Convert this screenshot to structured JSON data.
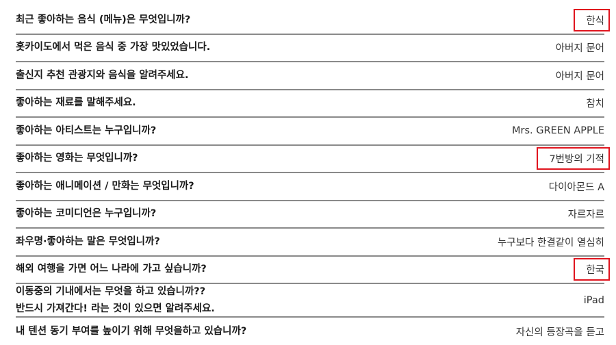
{
  "accent_highlight": "#e0141e",
  "rows": [
    {
      "question": "최근 좋아하는 음식 (메뉴)은 무엇입니까?",
      "answer": "한식",
      "highlighted": true
    },
    {
      "question": "홋카이도에서 먹은 음식 중 가장 맛있었습니다.",
      "answer": "아버지 문어",
      "highlighted": false
    },
    {
      "question": "출신지 추천 관광지와 음식을 알려주세요.",
      "answer": "아버지 문어",
      "highlighted": false
    },
    {
      "question": "좋아하는 재료를 말해주세요.",
      "answer": "참치",
      "highlighted": false
    },
    {
      "question": "좋아하는 아티스트는 누구입니까?",
      "answer": "Mrs. GREEN APPLE",
      "highlighted": false
    },
    {
      "question": "좋아하는 영화는 무엇입니까?",
      "answer": "7번방의 기적",
      "highlighted": true
    },
    {
      "question": "좋아하는 애니메이션 / 만화는 무엇입니까?",
      "answer": "다이아몬드 A",
      "highlighted": false
    },
    {
      "question": "좋아하는 코미디언은 누구입니까?",
      "answer": "자르자르",
      "highlighted": false
    },
    {
      "question": "좌우명·좋아하는 말은 무엇입니까?",
      "answer": "누구보다 한결같이 열심히",
      "highlighted": false
    },
    {
      "question": "해외 여행을 가면 어느 나라에 가고 싶습니까?",
      "answer": "한국",
      "highlighted": true
    },
    {
      "question": "이동중의 기내에서는 무엇을 하고 있습니까??",
      "question_line2": "반드시 가져간다! 라는 것이 있으면 알려주세요.",
      "answer": "iPad",
      "highlighted": false
    },
    {
      "question": "내 텐션 동기 부여를 높이기 위해 무엇을하고 있습니까?",
      "answer": "자신의 등장곡을 듣고",
      "highlighted": false
    }
  ]
}
